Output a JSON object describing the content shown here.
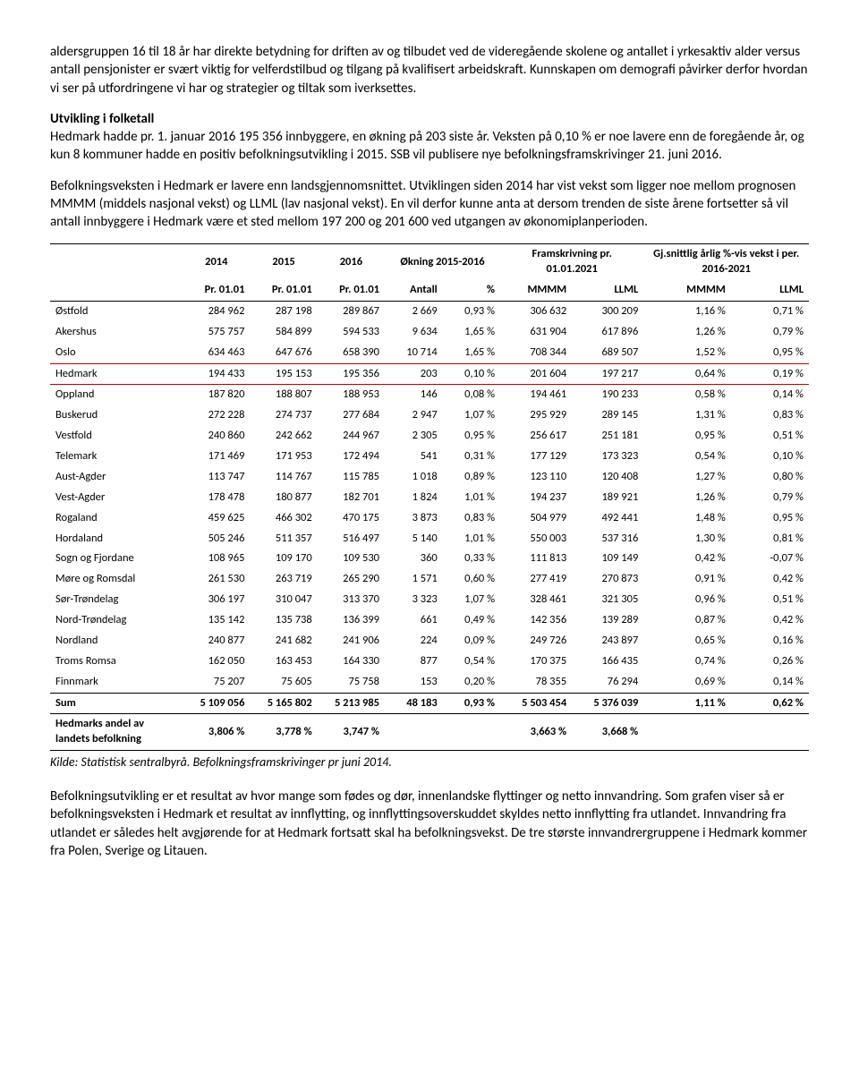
{
  "para1": "aldersgruppen 16 til 18 år har direkte betydning for driften av og tilbudet ved de videregående skolene og antallet i yrkesaktiv alder versus antall pensjonister er svært viktig for velferdstilbud og tilgang på kvalifisert arbeidskraft. Kunnskapen om demografi påvirker derfor hvordan vi ser på utfordringene vi har og strategier og tiltak som iverksettes.",
  "h1": "Utvikling i folketall",
  "para2": "Hedmark hadde pr. 1. januar 2016 195 356 innbyggere, en økning på 203 siste år. Veksten på 0,10 % er noe lavere enn de foregående år, og kun 8 kommuner hadde en positiv befolkningsutvikling i 2015. SSB vil publisere nye befolkningsframskrivinger 21. juni 2016.",
  "para3": "Befolkningsveksten i Hedmark er lavere enn landsgjennomsnittet. Utviklingen siden 2014 har vist vekst som ligger noe mellom prognosen MMMM (middels nasjonal vekst) og LLML (lav nasjonal vekst). En vil derfor kunne anta at dersom trenden de siste årene fortsetter så vil antall innbyggere i Hedmark være et sted mellom 197 200 og 201 600 ved utgangen av økonomiplanperioden.",
  "headers": {
    "y2014": "2014",
    "y2015": "2015",
    "y2016": "2016",
    "okning": "Økning  2015-2016",
    "fram": "Framskrivning pr. 01.01.2021",
    "gj": "Gj.snittlig årlig %-vis vekst i per. 2016-2021",
    "pr": "Pr. 01.01",
    "antall": "Antall",
    "pst": "%",
    "mmmm": "MMMM",
    "llml": "LLML"
  },
  "rows": [
    {
      "n": "Østfold",
      "a": "284 962",
      "b": "287 198",
      "c": "289 867",
      "d": "2 669",
      "e": "0,93 %",
      "f": "306 632",
      "g": "300 209",
      "h": "1,16 %",
      "i": "0,71 %"
    },
    {
      "n": "Akershus",
      "a": "575 757",
      "b": "584 899",
      "c": "594 533",
      "d": "9 634",
      "e": "1,65 %",
      "f": "631 904",
      "g": "617 896",
      "h": "1,26 %",
      "i": "0,79 %"
    },
    {
      "n": "Oslo",
      "a": "634 463",
      "b": "647 676",
      "c": "658 390",
      "d": "10 714",
      "e": "1,65 %",
      "f": "708 344",
      "g": "689 507",
      "h": "1,52 %",
      "i": "0,95 %"
    },
    {
      "n": "Hedmark",
      "a": "194 433",
      "b": "195 153",
      "c": "195 356",
      "d": "203",
      "e": "0,10 %",
      "f": "201 604",
      "g": "197 217",
      "h": "0,64 %",
      "i": "0,19 %",
      "hl": true
    },
    {
      "n": "Oppland",
      "a": "187 820",
      "b": "188 807",
      "c": "188 953",
      "d": "146",
      "e": "0,08 %",
      "f": "194 461",
      "g": "190 233",
      "h": "0,58 %",
      "i": "0,14 %"
    },
    {
      "n": "Buskerud",
      "a": "272 228",
      "b": "274 737",
      "c": "277 684",
      "d": "2 947",
      "e": "1,07 %",
      "f": "295 929",
      "g": "289 145",
      "h": "1,31 %",
      "i": "0,83 %"
    },
    {
      "n": "Vestfold",
      "a": "240 860",
      "b": "242 662",
      "c": "244 967",
      "d": "2 305",
      "e": "0,95 %",
      "f": "256 617",
      "g": "251 181",
      "h": "0,95 %",
      "i": "0,51 %"
    },
    {
      "n": "Telemark",
      "a": "171 469",
      "b": "171 953",
      "c": "172 494",
      "d": "541",
      "e": "0,31 %",
      "f": "177 129",
      "g": "173 323",
      "h": "0,54 %",
      "i": "0,10 %"
    },
    {
      "n": "Aust-Agder",
      "a": "113 747",
      "b": "114 767",
      "c": "115 785",
      "d": "1 018",
      "e": "0,89 %",
      "f": "123 110",
      "g": "120 408",
      "h": "1,27 %",
      "i": "0,80 %"
    },
    {
      "n": "Vest-Agder",
      "a": "178 478",
      "b": "180 877",
      "c": "182 701",
      "d": "1 824",
      "e": "1,01 %",
      "f": "194 237",
      "g": "189 921",
      "h": "1,26 %",
      "i": "0,79 %"
    },
    {
      "n": "Rogaland",
      "a": "459 625",
      "b": "466 302",
      "c": "470 175",
      "d": "3 873",
      "e": "0,83 %",
      "f": "504 979",
      "g": "492 441",
      "h": "1,48 %",
      "i": "0,95 %"
    },
    {
      "n": "Hordaland",
      "a": "505 246",
      "b": "511 357",
      "c": "516 497",
      "d": "5 140",
      "e": "1,01 %",
      "f": "550 003",
      "g": "537 316",
      "h": "1,30 %",
      "i": "0,81 %"
    },
    {
      "n": "Sogn og Fjordane",
      "a": "108 965",
      "b": "109 170",
      "c": "109 530",
      "d": "360",
      "e": "0,33 %",
      "f": "111 813",
      "g": "109 149",
      "h": "0,42 %",
      "i": "-0,07 %"
    },
    {
      "n": "Møre og Romsdal",
      "a": "261 530",
      "b": "263 719",
      "c": "265 290",
      "d": "1 571",
      "e": "0,60 %",
      "f": "277 419",
      "g": "270 873",
      "h": "0,91 %",
      "i": "0,42 %"
    },
    {
      "n": "Sør-Trøndelag",
      "a": "306 197",
      "b": "310 047",
      "c": "313 370",
      "d": "3 323",
      "e": "1,07 %",
      "f": "328 461",
      "g": "321 305",
      "h": "0,96 %",
      "i": "0,51 %"
    },
    {
      "n": "Nord-Trøndelag",
      "a": "135 142",
      "b": "135 738",
      "c": "136 399",
      "d": "661",
      "e": "0,49 %",
      "f": "142 356",
      "g": "139 289",
      "h": "0,87 %",
      "i": "0,42 %"
    },
    {
      "n": "Nordland",
      "a": "240 877",
      "b": "241 682",
      "c": "241 906",
      "d": "224",
      "e": "0,09 %",
      "f": "249 726",
      "g": "243 897",
      "h": "0,65 %",
      "i": "0,16 %"
    },
    {
      "n": "Troms Romsa",
      "a": "162 050",
      "b": "163 453",
      "c": "164 330",
      "d": "877",
      "e": "0,54 %",
      "f": "170 375",
      "g": "166 435",
      "h": "0,74 %",
      "i": "0,26 %"
    },
    {
      "n": "Finnmark",
      "a": "75 207",
      "b": "75 605",
      "c": "75 758",
      "d": "153",
      "e": "0,20 %",
      "f": "78 355",
      "g": "76 294",
      "h": "0,69 %",
      "i": "0,14 %"
    }
  ],
  "sum": {
    "n": "Sum",
    "a": "5 109 056",
    "b": "5 165 802",
    "c": "5 213 985",
    "d": "48 183",
    "e": "0,93 %",
    "f": "5 503 454",
    "g": "5 376 039",
    "h": "1,11 %",
    "i": "0,62 %"
  },
  "foot": {
    "n": "Hedmarks andel av landets befolkning",
    "a": "3,806 %",
    "b": "3,778 %",
    "c": "3,747 %",
    "f": "3,663 %",
    "g": "3,668 %"
  },
  "source": "Kilde: Statistisk sentralbyrå. Befolkningsframskrivinger pr juni 2014.",
  "para4": "Befolkningsutvikling er et resultat av hvor mange som fødes og dør, innenlandske flyttinger og netto innvandring. Som grafen viser så er befolkningsveksten i Hedmark et resultat av innflytting, og innflyttingsoverskuddet skyldes netto innflytting fra utlandet. Innvandring fra utlandet er således helt avgjørende for at Hedmark fortsatt skal ha befolkningsvekst. De tre største innvandrergruppene i Hedmark kommer fra Polen, Sverige og Litauen."
}
